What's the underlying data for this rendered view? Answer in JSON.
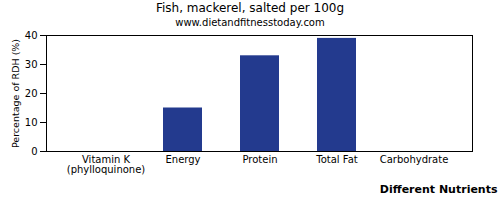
{
  "chart_data": {
    "type": "bar",
    "title": "Fish, mackerel, salted per 100g",
    "subtitle": "www.dietandfitnesstoday.com",
    "x_label": "Different Nutrients",
    "y_label": "Percentage of RDH (%)",
    "categories": [
      "Vitamin K (phylloquinone)",
      "Energy",
      "Protein",
      "Total Fat",
      "Carbohydrate"
    ],
    "values": [
      0,
      15,
      33,
      39,
      0
    ],
    "color": "#233a8e",
    "ylim": [
      0,
      40
    ],
    "yticks": [
      0,
      10,
      20,
      30,
      40
    ],
    "grid": false
  }
}
